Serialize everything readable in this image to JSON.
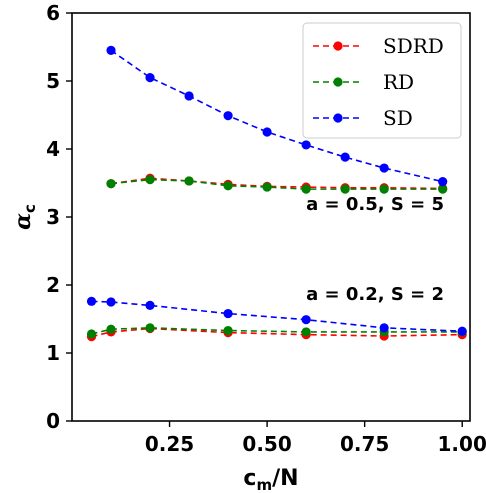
{
  "chart_data": {
    "type": "line",
    "xlabel": "c_m/N",
    "ylabel": "α_c",
    "xlim": [
      0.0,
      1.02
    ],
    "ylim": [
      0,
      6
    ],
    "xticks": [
      0.25,
      0.5,
      0.75,
      1.0
    ],
    "xtick_labels": [
      "0.25",
      "0.50",
      "0.75",
      "1.00"
    ],
    "yticks": [
      0,
      1,
      2,
      3,
      4,
      5,
      6
    ],
    "ytick_labels": [
      "0",
      "1",
      "2",
      "3",
      "4",
      "5",
      "6"
    ],
    "grid": false,
    "legend": {
      "placement": "top-right",
      "entries": [
        "SDRD",
        "RD",
        "SD"
      ]
    },
    "annotations": [
      {
        "text": "a = 0.5, S = 5",
        "x": 0.6,
        "y": 3.1
      },
      {
        "text": "a = 0.2, S = 2",
        "x": 0.6,
        "y": 1.78
      }
    ],
    "series": [
      {
        "name": "SDRD",
        "group": "a = 0.5, S = 5",
        "color": "#ff0000",
        "x": [
          0.1,
          0.2,
          0.3,
          0.4,
          0.5,
          0.6,
          0.7,
          0.8,
          0.95
        ],
        "y": [
          3.49,
          3.57,
          3.53,
          3.48,
          3.45,
          3.44,
          3.43,
          3.43,
          3.42
        ]
      },
      {
        "name": "RD",
        "group": "a = 0.5, S = 5",
        "color": "#008000",
        "x": [
          0.1,
          0.2,
          0.3,
          0.4,
          0.5,
          0.6,
          0.7,
          0.8,
          0.95
        ],
        "y": [
          3.49,
          3.55,
          3.53,
          3.46,
          3.44,
          3.41,
          3.41,
          3.41,
          3.41
        ]
      },
      {
        "name": "SD",
        "group": "a = 0.5, S = 5",
        "color": "#0000ff",
        "x": [
          0.1,
          0.2,
          0.3,
          0.4,
          0.5,
          0.6,
          0.7,
          0.8,
          0.95
        ],
        "y": [
          5.45,
          5.05,
          4.78,
          4.49,
          4.25,
          4.06,
          3.88,
          3.72,
          3.52
        ]
      },
      {
        "name": "SDRD",
        "group": "a = 0.2, S = 2",
        "color": "#ff0000",
        "x": [
          0.05,
          0.1,
          0.2,
          0.4,
          0.6,
          0.8,
          1.0
        ],
        "y": [
          1.24,
          1.31,
          1.36,
          1.3,
          1.27,
          1.25,
          1.27
        ]
      },
      {
        "name": "RD",
        "group": "a = 0.2, S = 2",
        "color": "#008000",
        "x": [
          0.05,
          0.1,
          0.2,
          0.4,
          0.6,
          0.8,
          1.0
        ],
        "y": [
          1.28,
          1.35,
          1.37,
          1.33,
          1.31,
          1.31,
          1.31
        ]
      },
      {
        "name": "SD",
        "group": "a = 0.2, S = 2",
        "color": "#0000ff",
        "x": [
          0.05,
          0.1,
          0.2,
          0.4,
          0.6,
          0.8,
          1.0
        ],
        "y": [
          1.76,
          1.75,
          1.7,
          1.58,
          1.49,
          1.37,
          1.32
        ]
      }
    ]
  }
}
